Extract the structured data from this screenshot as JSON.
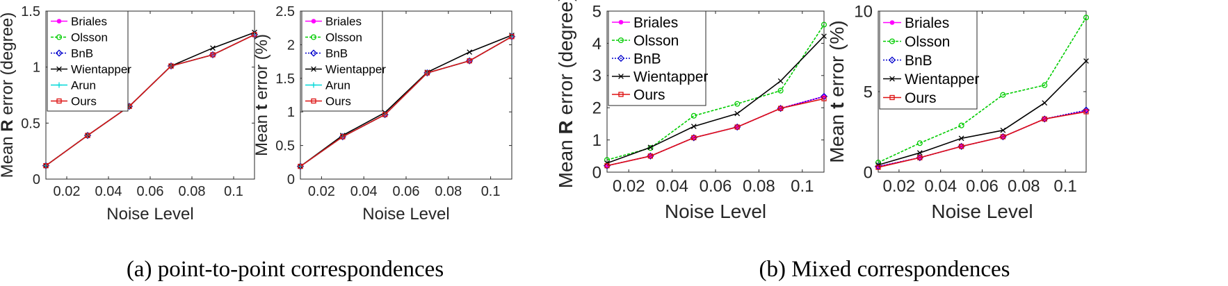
{
  "colors": {
    "Briales": "#ff00ff",
    "Olsson": "#00cc00",
    "BnB": "#0000cc",
    "Wientapper": "#000000",
    "Arun": "#00d8d8",
    "Ours": "#dd1111"
  },
  "markers": {
    "Briales": "dot",
    "Olsson": "circle",
    "BnB": "diamond",
    "Wientapper": "x",
    "Arun": "plus",
    "Ours": "square"
  },
  "captions": {
    "a": "(a) point-to-point correspondences",
    "b": "(b) Mixed correspondences"
  },
  "chart_data": [
    {
      "type": "line",
      "xlabel": "Noise Level",
      "ylabel_pre": "Mean ",
      "ylabel_bold": "R",
      "ylabel_post": " error  (degree)",
      "xlim": [
        0.01,
        0.11
      ],
      "ylim": [
        0,
        1.5
      ],
      "xticks": [
        "0.02",
        "0.04",
        "0.06",
        "0.08",
        "0.1"
      ],
      "yticks": [
        "0",
        "0.5",
        "1",
        "1.5"
      ],
      "x": [
        0.01,
        0.03,
        0.05,
        0.07,
        0.09,
        0.11
      ],
      "series": [
        {
          "name": "Briales",
          "values": [
            0.12,
            0.39,
            0.65,
            1.01,
            1.11,
            1.29
          ]
        },
        {
          "name": "Olsson",
          "values": [
            0.12,
            0.39,
            0.65,
            1.01,
            1.11,
            1.29
          ]
        },
        {
          "name": "BnB",
          "values": [
            0.12,
            0.39,
            0.65,
            1.01,
            1.11,
            1.29
          ]
        },
        {
          "name": "Wientapper",
          "values": [
            0.12,
            0.39,
            0.65,
            1.01,
            1.17,
            1.31
          ]
        },
        {
          "name": "Arun",
          "values": [
            0.12,
            0.39,
            0.65,
            1.01,
            1.11,
            1.29
          ]
        },
        {
          "name": "Ours",
          "values": [
            0.12,
            0.39,
            0.65,
            1.01,
            1.11,
            1.29
          ]
        }
      ],
      "legend": "top-left"
    },
    {
      "type": "line",
      "xlabel": "Noise Level",
      "ylabel_pre": "Mean ",
      "ylabel_bold": "t",
      "ylabel_post": " error (%)",
      "xlim": [
        0.01,
        0.11
      ],
      "ylim": [
        0,
        2.5
      ],
      "xticks": [
        "0.02",
        "0.04",
        "0.06",
        "0.08",
        "0.1"
      ],
      "yticks": [
        "0",
        "0.5",
        "1",
        "1.5",
        "2",
        "2.5"
      ],
      "x": [
        0.01,
        0.03,
        0.05,
        0.07,
        0.09,
        0.11
      ],
      "series": [
        {
          "name": "Briales",
          "values": [
            0.19,
            0.63,
            0.96,
            1.58,
            1.76,
            2.12
          ]
        },
        {
          "name": "Olsson",
          "values": [
            0.19,
            0.63,
            0.96,
            1.58,
            1.76,
            2.12
          ]
        },
        {
          "name": "BnB",
          "values": [
            0.19,
            0.63,
            0.96,
            1.58,
            1.76,
            2.12
          ]
        },
        {
          "name": "Wientapper",
          "values": [
            0.19,
            0.65,
            0.99,
            1.59,
            1.89,
            2.14
          ]
        },
        {
          "name": "Arun",
          "values": [
            0.19,
            0.63,
            0.96,
            1.58,
            1.76,
            2.12
          ]
        },
        {
          "name": "Ours",
          "values": [
            0.19,
            0.63,
            0.96,
            1.58,
            1.76,
            2.12
          ]
        }
      ],
      "legend": "top-left"
    },
    {
      "type": "line",
      "xlabel": "Noise Level",
      "ylabel_pre": "Mean ",
      "ylabel_bold": "R",
      "ylabel_post": " error  (degree)",
      "xlim": [
        0.01,
        0.11
      ],
      "ylim": [
        0,
        5
      ],
      "xticks": [
        "0.02",
        "0.04",
        "0.06",
        "0.08",
        "0.1"
      ],
      "yticks": [
        "0",
        "1",
        "2",
        "3",
        "4",
        "5"
      ],
      "x": [
        0.01,
        0.03,
        0.05,
        0.07,
        0.09,
        0.11
      ],
      "series": [
        {
          "name": "Briales",
          "values": [
            0.2,
            0.5,
            1.07,
            1.4,
            1.98,
            2.35
          ]
        },
        {
          "name": "Olsson",
          "values": [
            0.38,
            0.75,
            1.75,
            2.12,
            2.53,
            4.58
          ]
        },
        {
          "name": "BnB",
          "values": [
            0.2,
            0.5,
            1.07,
            1.4,
            1.98,
            2.35
          ]
        },
        {
          "name": "Wientapper",
          "values": [
            0.28,
            0.77,
            1.42,
            1.82,
            2.83,
            4.22
          ]
        },
        {
          "name": "Ours",
          "values": [
            0.2,
            0.5,
            1.07,
            1.4,
            1.98,
            2.28
          ]
        }
      ],
      "legend": "top-left"
    },
    {
      "type": "line",
      "xlabel": "Noise Level",
      "ylabel_pre": "Mean ",
      "ylabel_bold": "t",
      "ylabel_post": " error (%)",
      "xlim": [
        0.01,
        0.11
      ],
      "ylim": [
        0,
        10
      ],
      "xticks": [
        "0.02",
        "0.04",
        "0.06",
        "0.08",
        "0.1"
      ],
      "yticks": [
        "0",
        "5",
        "10"
      ],
      "x": [
        0.01,
        0.03,
        0.05,
        0.07,
        0.09,
        0.11
      ],
      "series": [
        {
          "name": "Briales",
          "values": [
            0.35,
            0.9,
            1.6,
            2.2,
            3.3,
            3.8
          ]
        },
        {
          "name": "Olsson",
          "values": [
            0.6,
            1.8,
            2.9,
            4.8,
            5.4,
            9.6
          ]
        },
        {
          "name": "BnB",
          "values": [
            0.35,
            0.9,
            1.6,
            2.2,
            3.3,
            3.85
          ]
        },
        {
          "name": "Wientapper",
          "values": [
            0.45,
            1.2,
            2.1,
            2.6,
            4.3,
            6.9
          ]
        },
        {
          "name": "Ours",
          "values": [
            0.3,
            0.9,
            1.6,
            2.2,
            3.3,
            3.75
          ]
        }
      ],
      "legend": "top-left"
    }
  ]
}
